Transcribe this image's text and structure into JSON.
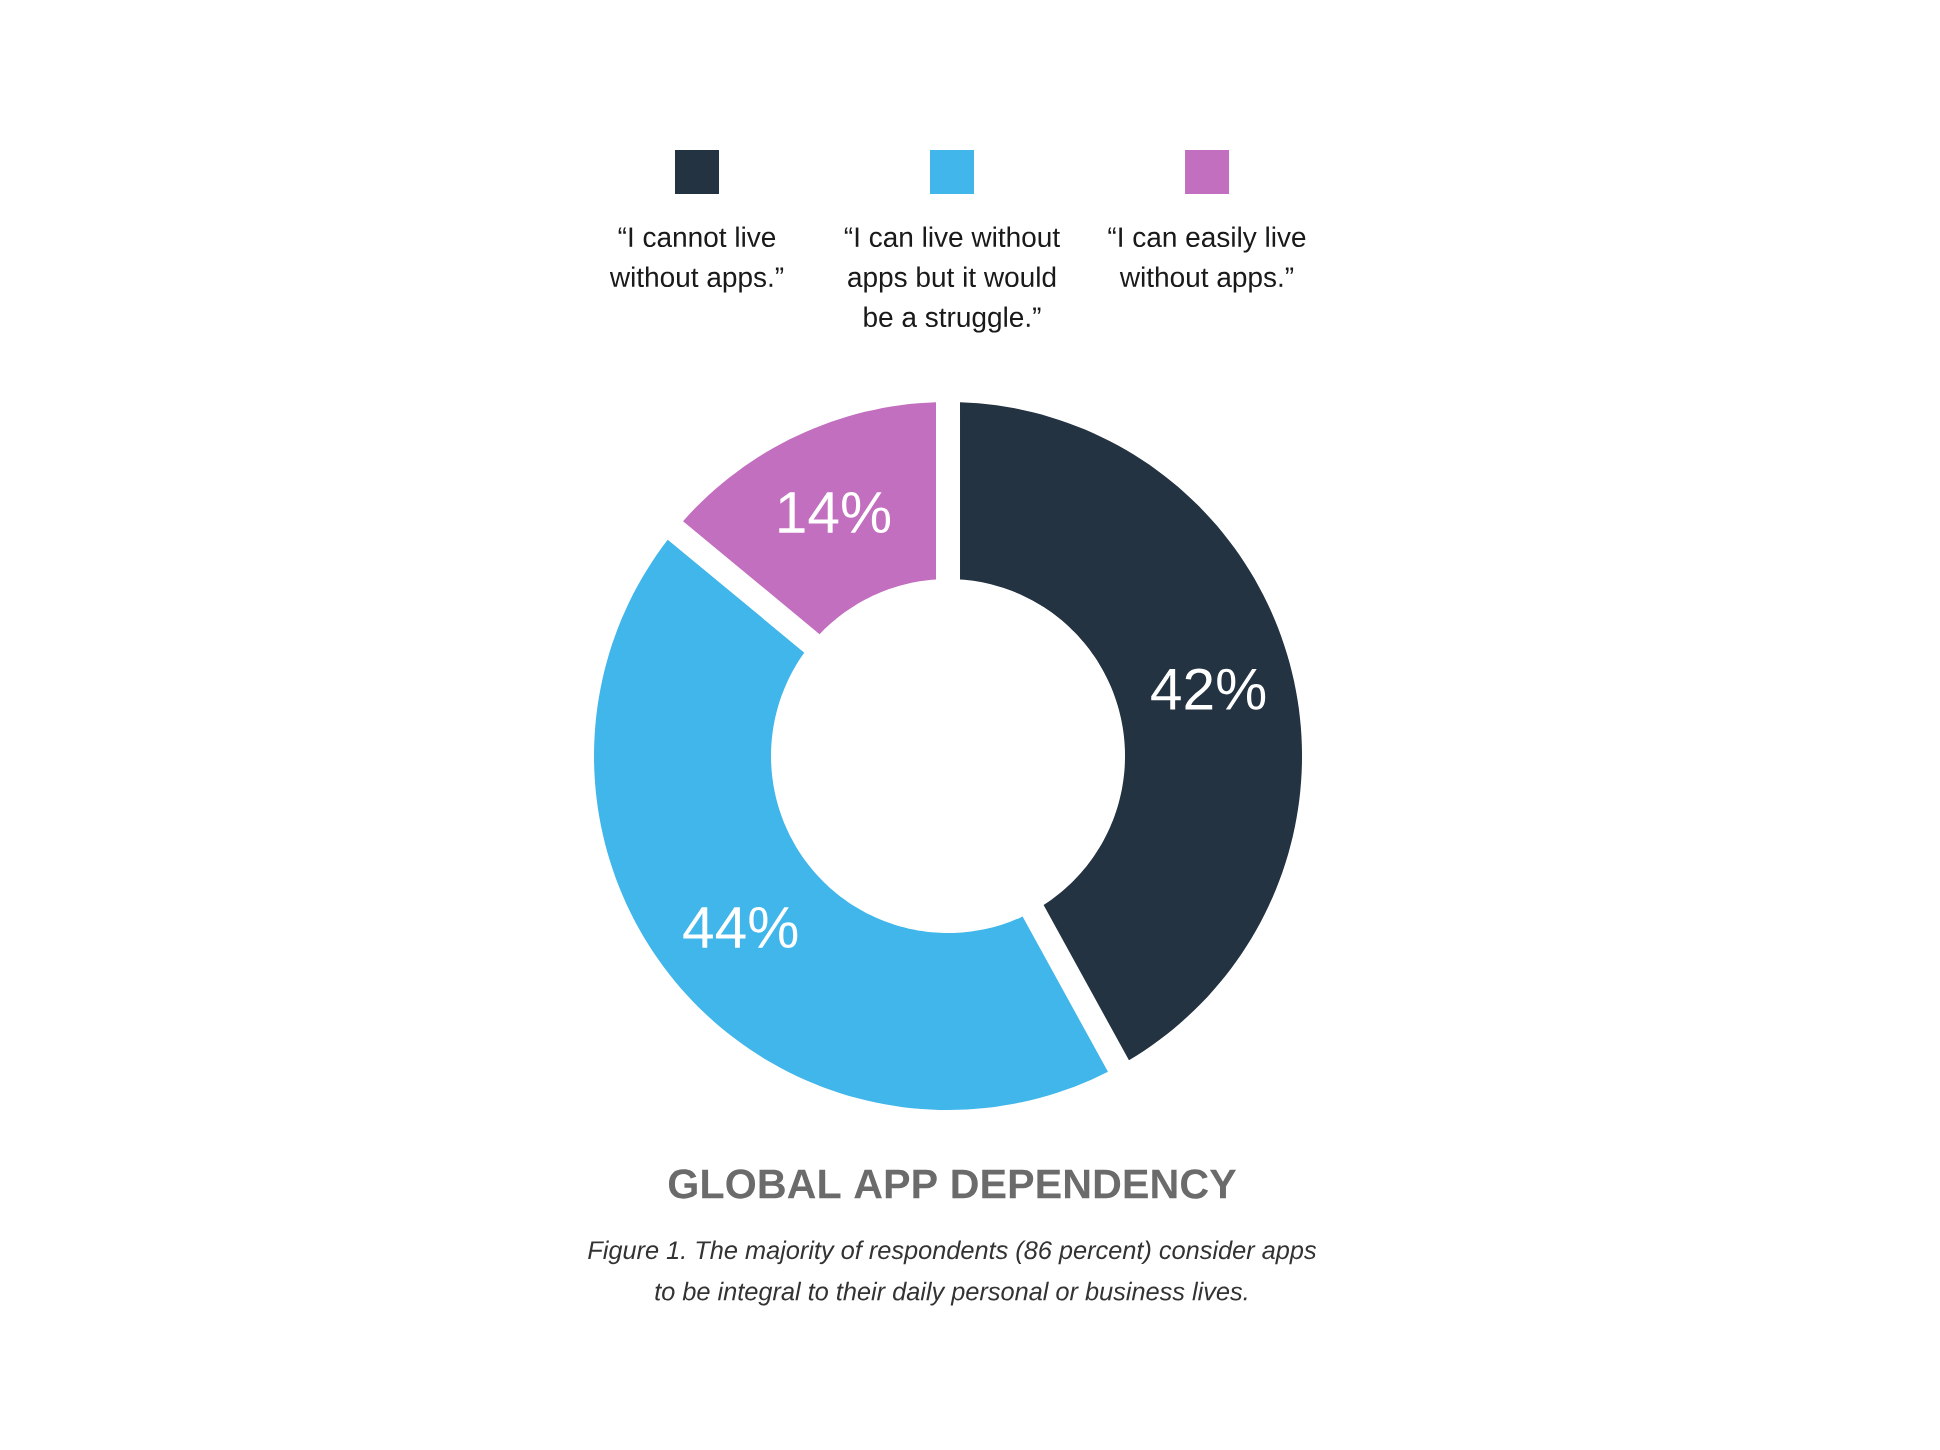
{
  "chart_data": {
    "type": "donut",
    "title": "GLOBAL APP DEPENDENCY",
    "categories": [
      "“I cannot live without apps.”",
      "“I can live without apps but it would be a struggle.”",
      "“I can easily live without apps.”"
    ],
    "values": [
      42,
      44,
      14
    ],
    "colors": [
      "#233342",
      "#41b6ea",
      "#c36fc0"
    ],
    "value_labels": [
      "42%",
      "44%",
      "14%"
    ],
    "legend": "top",
    "annotations": [
      "Figure 1. The majority of respondents (86 percent) consider apps to be integral to their daily personal or business lives."
    ]
  }
}
